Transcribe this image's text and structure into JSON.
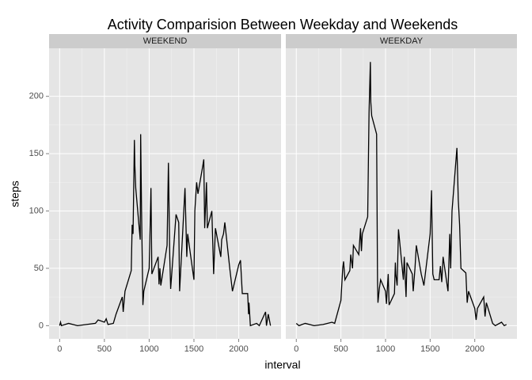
{
  "chart_data": {
    "type": "line",
    "title": "Activity Comparision Between Weekday and Weekends",
    "x_label": "interval",
    "y_label": "steps",
    "facets": true,
    "grid": true,
    "xlim": [
      -117.75,
      2472.75
    ],
    "ylim": [
      -11.5,
      241.9
    ],
    "xticks": [
      0,
      500,
      1000,
      1500,
      2000
    ],
    "yticks": [
      0,
      50,
      100,
      150,
      200
    ],
    "series": [
      {
        "name": "WEEKEND",
        "color": "#000000",
        "x": [
          0,
          10,
          20,
          100,
          200,
          300,
          400,
          430,
          500,
          520,
          540,
          600,
          630,
          700,
          710,
          730,
          800,
          810,
          820,
          835,
          840,
          850,
          900,
          905,
          915,
          930,
          940,
          1000,
          1020,
          1030,
          1100,
          1110,
          1120,
          1130,
          1200,
          1215,
          1230,
          1240,
          1300,
          1330,
          1340,
          1400,
          1420,
          1430,
          1500,
          1510,
          1530,
          1545,
          1600,
          1610,
          1620,
          1640,
          1650,
          1700,
          1720,
          1740,
          1800,
          1810,
          1830,
          1845,
          1900,
          1930,
          2000,
          2020,
          2040,
          2100,
          2110,
          2115,
          2130,
          2200,
          2230,
          2300,
          2310,
          2330,
          2355
        ],
        "values": [
          0,
          3,
          0,
          2,
          0,
          1,
          2,
          5,
          3,
          6,
          1,
          2,
          10,
          25,
          12,
          30,
          48,
          88,
          80,
          162,
          140,
          120,
          75,
          167,
          100,
          18,
          30,
          50,
          120,
          45,
          60,
          36,
          50,
          35,
          70,
          142,
          60,
          32,
          97,
          90,
          30,
          120,
          60,
          80,
          40,
          100,
          125,
          115,
          140,
          145,
          85,
          125,
          85,
          100,
          45,
          85,
          60,
          75,
          80,
          90,
          50,
          30,
          53,
          57,
          28,
          28,
          10,
          20,
          0,
          2,
          0,
          12,
          0,
          10,
          0
        ]
      },
      {
        "name": "WEEKDAY",
        "color": "#000000",
        "x": [
          0,
          30,
          100,
          200,
          300,
          400,
          430,
          500,
          520,
          530,
          545,
          600,
          610,
          630,
          640,
          700,
          720,
          730,
          740,
          800,
          815,
          820,
          830,
          835,
          845,
          900,
          910,
          915,
          930,
          945,
          1000,
          1010,
          1030,
          1040,
          1100,
          1110,
          1115,
          1130,
          1145,
          1200,
          1210,
          1230,
          1240,
          1300,
          1310,
          1330,
          1345,
          1400,
          1415,
          1430,
          1500,
          1515,
          1530,
          1545,
          1600,
          1615,
          1630,
          1645,
          1700,
          1720,
          1730,
          1745,
          1800,
          1815,
          1830,
          1845,
          1900,
          1915,
          1930,
          2000,
          2015,
          2030,
          2100,
          2115,
          2130,
          2200,
          2230,
          2300,
          2330,
          2355
        ],
        "values": [
          2,
          0,
          2,
          0,
          1,
          3,
          2,
          22,
          50,
          56,
          40,
          48,
          62,
          50,
          70,
          62,
          85,
          65,
          80,
          95,
          185,
          200,
          230,
          195,
          183,
          167,
          40,
          20,
          32,
          40,
          30,
          19,
          45,
          18,
          28,
          55,
          45,
          35,
          84,
          40,
          60,
          25,
          55,
          45,
          30,
          50,
          70,
          45,
          40,
          35,
          80,
          118,
          45,
          40,
          40,
          52,
          38,
          60,
          30,
          80,
          50,
          100,
          155,
          110,
          88,
          50,
          46,
          20,
          30,
          15,
          5,
          15,
          25,
          8,
          20,
          2,
          0,
          3,
          0,
          1
        ]
      }
    ]
  }
}
